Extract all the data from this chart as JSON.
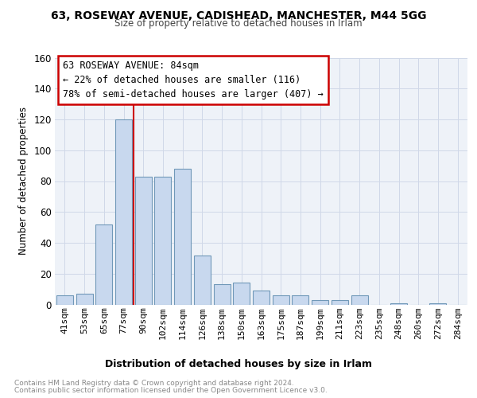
{
  "title_line1": "63, ROSEWAY AVENUE, CADISHEAD, MANCHESTER, M44 5GG",
  "title_line2": "Size of property relative to detached houses in Irlam",
  "xlabel": "Distribution of detached houses by size in Irlam",
  "ylabel": "Number of detached properties",
  "categories": [
    "41sqm",
    "53sqm",
    "65sqm",
    "77sqm",
    "90sqm",
    "102sqm",
    "114sqm",
    "126sqm",
    "138sqm",
    "150sqm",
    "163sqm",
    "175sqm",
    "187sqm",
    "199sqm",
    "211sqm",
    "223sqm",
    "235sqm",
    "248sqm",
    "260sqm",
    "272sqm",
    "284sqm"
  ],
  "values": [
    6,
    7,
    52,
    120,
    83,
    83,
    88,
    32,
    13,
    14,
    9,
    6,
    6,
    3,
    3,
    6,
    0,
    1,
    0,
    1,
    0
  ],
  "bar_color": "#c8d8ee",
  "bar_edge_color": "#7098b8",
  "property_line_x": 3.5,
  "annotation_title": "63 ROSEWAY AVENUE: 84sqm",
  "annotation_line1": "← 22% of detached houses are smaller (116)",
  "annotation_line2": "78% of semi-detached houses are larger (407) →",
  "annotation_box_color": "#cc0000",
  "vline_color": "#cc0000",
  "grid_color": "#d0d8e8",
  "footnote_line1": "Contains HM Land Registry data © Crown copyright and database right 2024.",
  "footnote_line2": "Contains public sector information licensed under the Open Government Licence v3.0.",
  "ylim": [
    0,
    160
  ],
  "yticks": [
    0,
    20,
    40,
    60,
    80,
    100,
    120,
    140,
    160
  ],
  "bg_color": "#eef2f8",
  "fig_width": 6.0,
  "fig_height": 5.0,
  "fig_dpi": 100
}
